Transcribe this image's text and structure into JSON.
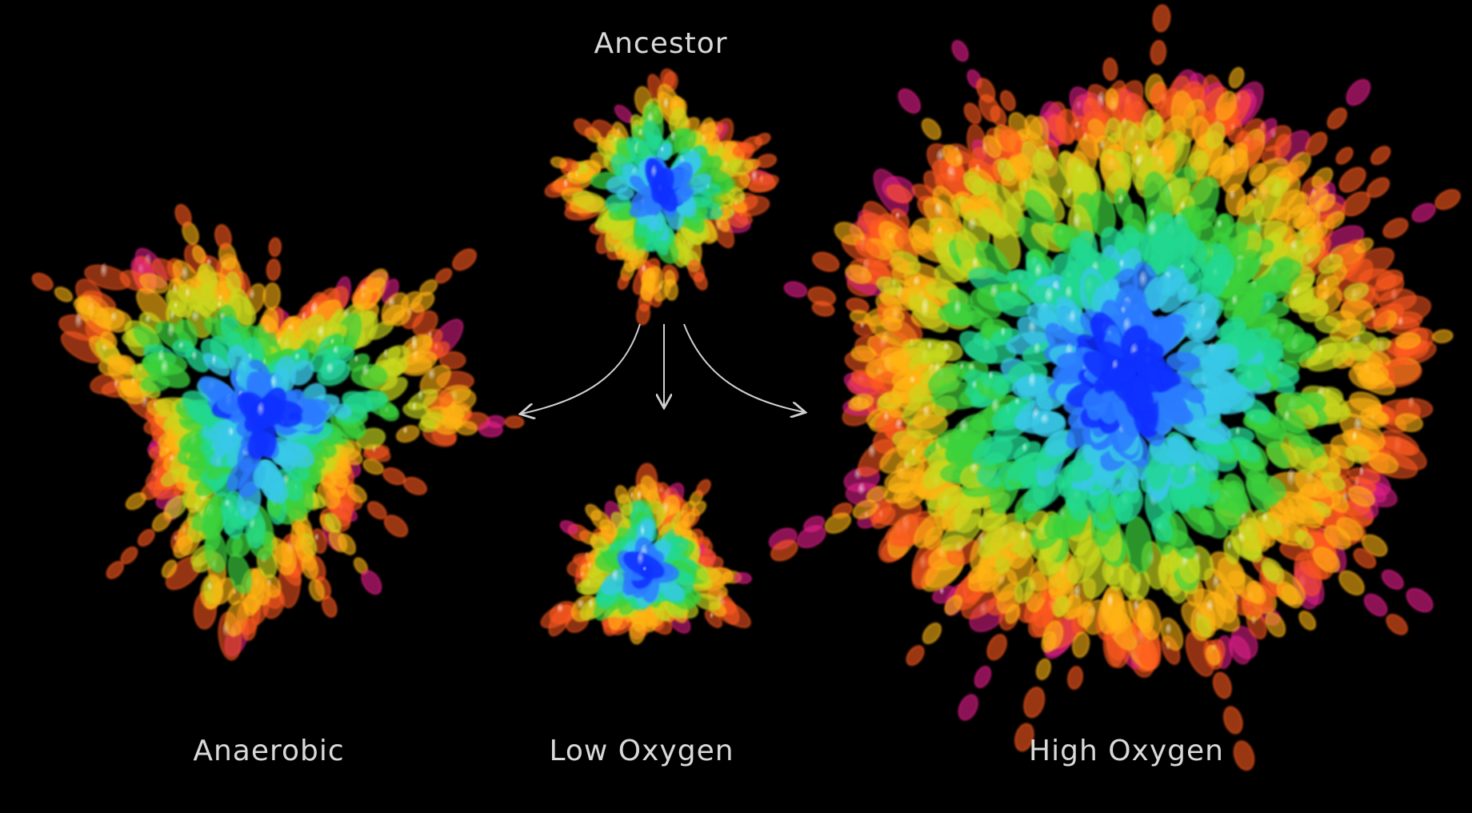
{
  "labels": {
    "ancestor": "Ancestor",
    "anaerobic": "Anaerobic",
    "low_oxygen": "Low Oxygen",
    "high_oxygen": "High Oxygen"
  },
  "colors": {
    "background": "#000000",
    "label": "#d9d9d9",
    "arrow": "#cfcfcf",
    "depth_palette": [
      "#1030ff",
      "#2a7bff",
      "#38c8e8",
      "#20d890",
      "#3cd23c",
      "#c8d81e",
      "#ffb414",
      "#ff5a1e",
      "#e81e8c"
    ]
  },
  "clusters": [
    {
      "id": "ancestor",
      "shape": "diamond"
    },
    {
      "id": "anaerobic",
      "shape": "star"
    },
    {
      "id": "low_oxygen",
      "shape": "triangle"
    },
    {
      "id": "high_oxygen",
      "shape": "round"
    }
  ]
}
